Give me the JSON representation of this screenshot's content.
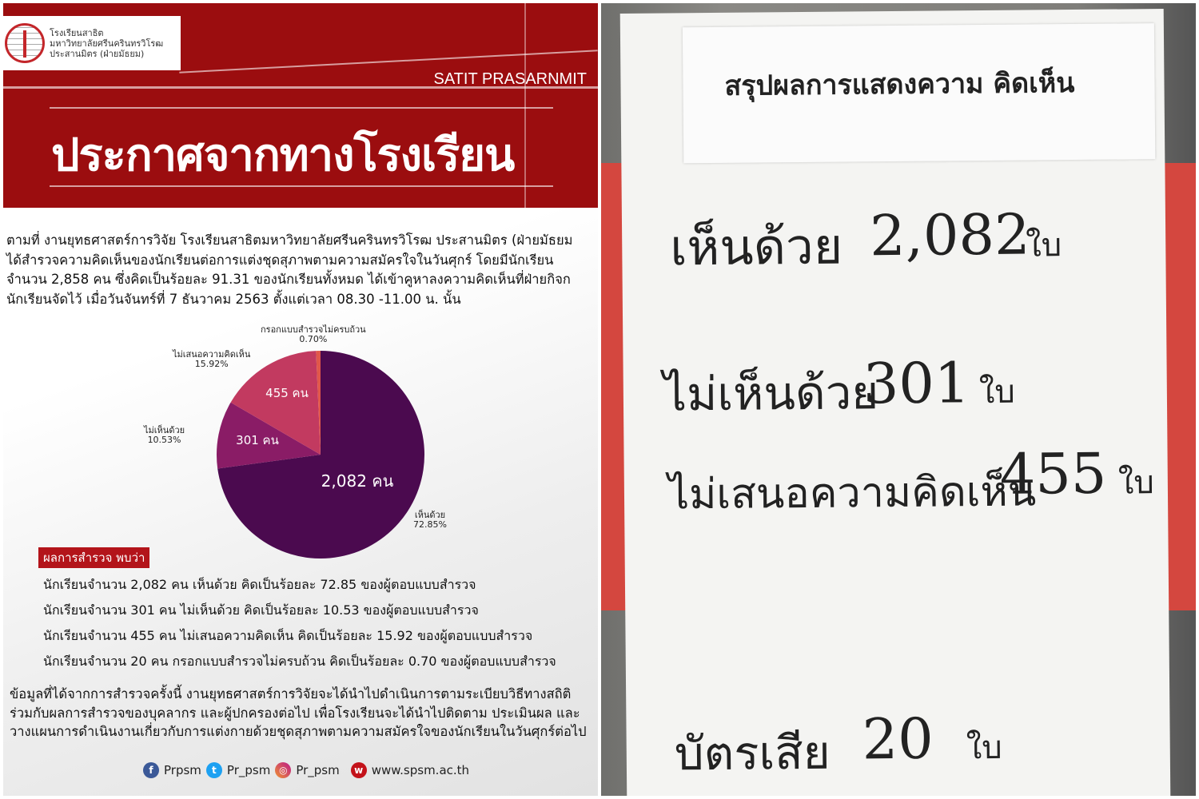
{
  "poster": {
    "logo_lines": [
      "โรงเรียนสาธิต",
      "มหาวิทยาลัยศรีนครินทรวิโรฒ",
      "ประสานมิตร (ฝ่ายมัธยม)"
    ],
    "brand": "SATIT PRASARNMIT",
    "title": "ประกาศจากทางโรงเรียน",
    "intro": [
      "ตามที่ งานยุทธศาสตร์การวิจัย โรงเรียนสาธิตมหาวิทยาลัยศรีนครินทรวิโรฒ ประสานมิตร (ฝ่ายมัธยม",
      "ได้สำรวจความคิดเห็นของนักเรียนต่อการแต่งชุดสุภาพตามความสมัครใจในวันศุกร์ โดยมีนักเรียน",
      "จำนวน 2,858 คน ซึ่งคิดเป็นร้อยละ 91.31 ของนักเรียนทั้งหมด ได้เข้าคูหาลงความคิดเห็นที่ฝ่ายกิจก",
      "นักเรียนจัดไว้ เมื่อวันจันทร์ที่ 7 ธันวาคม 2563 ตั้งแต่เวลา 08.30 -11.00 น. นั้น"
    ],
    "results_heading": "ผลการสำรวจ พบว่า",
    "results": [
      "นักเรียนจำนวน 2,082 คน เห็นด้วย คิดเป็นร้อยละ 72.85 ของผู้ตอบแบบสำรวจ",
      "นักเรียนจำนวน 301 คน ไม่เห็นด้วย คิดเป็นร้อยละ 10.53 ของผู้ตอบแบบสำรวจ",
      "นักเรียนจำนวน 455 คน ไม่เสนอความคิดเห็น คิดเป็นร้อยละ 15.92 ของผู้ตอบแบบสำรวจ",
      "นักเรียนจำนวน 20 คน กรอกแบบสำรวจไม่ครบถ้วน คิดเป็นร้อยละ 0.70 ของผู้ตอบแบบสำรวจ"
    ],
    "closing": [
      "ข้อมูลที่ได้จากการสำรวจครั้งนี้ งานยุทธศาสตร์การวิจัยจะได้นำไปดำเนินการตามระเบียบวิธีทางสถิติ",
      "ร่วมกับผลการสำรวจของบุคลากร และผู้ปกครองต่อไป เพื่อโรงเรียนจะได้นำไปติดตาม ประเมินผล และ",
      "วางแผนการดำเนินงานเกี่ยวกับการแต่งกายด้วยชุดสุภาพตามความสมัครใจของนักเรียนในวันศุกร์ต่อไป"
    ],
    "social": {
      "facebook": "Prpsm",
      "twitter": "Pr_psm",
      "instagram": "Pr_psm",
      "website": "www.spsm.ac.th"
    }
  },
  "chart_data": {
    "type": "pie",
    "start": "12 o'clock, clockwise",
    "slices": [
      {
        "label": "เห็นด้วย",
        "percent": 72.85,
        "count": 2082,
        "data_label": "2,082 คน",
        "color": "#4b0a4f"
      },
      {
        "label": "ไม่เห็นด้วย",
        "percent": 10.53,
        "count": 301,
        "data_label": "301 คน",
        "color": "#8a1c66"
      },
      {
        "label": "ไม่เสนอความคิดเห็น",
        "percent": 15.92,
        "count": 455,
        "data_label": "455 คน",
        "color": "#c23a60"
      },
      {
        "label": "กรอกแบบสำรวจไม่ครบถ้วน",
        "percent": 0.7,
        "count": 20,
        "data_label": "",
        "color": "#e0574a"
      }
    ],
    "percent_labels": [
      "72.85%",
      "10.53%",
      "15.92%",
      "0.70%"
    ]
  },
  "photo": {
    "sheet_title": "สรุปผลการแสดงความ คิดเห็น",
    "rows": [
      {
        "label": "เห็นด้วย",
        "value": "2,082",
        "unit": "ใบ"
      },
      {
        "label": "ไม่เห็นด้วย",
        "value": "301",
        "unit": "ใบ"
      },
      {
        "label": "ไม่เสนอความคิดเห็น",
        "value": "455",
        "unit": "ใบ"
      },
      {
        "label": "บัตรเสีย",
        "value": "20",
        "unit": "ใบ"
      }
    ]
  }
}
